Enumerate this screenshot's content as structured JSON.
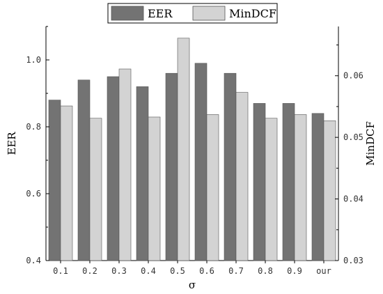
{
  "chart_data": {
    "type": "bar",
    "categories": [
      "0.1",
      "0.2",
      "0.3",
      "0.4",
      "0.5",
      "0.6",
      "0.7",
      "0.8",
      "0.9",
      "our"
    ],
    "series": [
      {
        "name": "EER",
        "axis": "left",
        "color": "#737373",
        "values": [
          0.88,
          0.94,
          0.95,
          0.92,
          0.96,
          0.99,
          0.96,
          0.87,
          0.87,
          0.84
        ]
      },
      {
        "name": "MinDCF",
        "axis": "right",
        "color": "#d3d3d3",
        "values": [
          0.0551,
          0.0531,
          0.0611,
          0.0533,
          0.0661,
          0.0537,
          0.0573,
          0.0531,
          0.0537,
          0.0527
        ]
      }
    ],
    "xlabel": "σ",
    "ylabel": "EER",
    "y2label": "MinDCF",
    "ylim": [
      0.4,
      1.1
    ],
    "y2lim": [
      0.03,
      0.068
    ],
    "yticks": [
      "0.4",
      "0.6",
      "0.8",
      "1.0"
    ],
    "y2ticks": [
      "0.03",
      "0.04",
      "0.05",
      "0.06"
    ],
    "legend_position": "top-center",
    "grid": false
  }
}
